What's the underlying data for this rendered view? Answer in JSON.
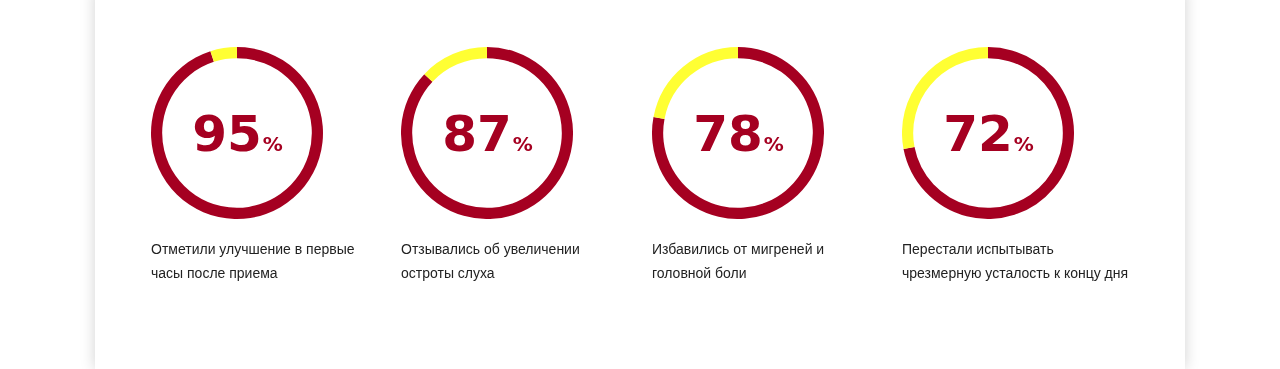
{
  "chart_data": [
    {
      "type": "donut",
      "categories": [
        null,
        null
      ],
      "values": [
        95,
        5
      ],
      "colors": [
        "#a50021",
        "#ffff33"
      ],
      "value_labels": [
        "95%",
        null
      ],
      "legend": false,
      "annotations": [
        "Отметили улучшение в первые часы после приема"
      ]
    },
    {
      "type": "donut",
      "categories": [
        null,
        null
      ],
      "values": [
        87,
        13
      ],
      "colors": [
        "#a50021",
        "#ffff33"
      ],
      "value_labels": [
        "87%",
        null
      ],
      "legend": false,
      "annotations": [
        "Отзывались об увеличении остроты слуха"
      ]
    },
    {
      "type": "donut",
      "categories": [
        null,
        null
      ],
      "values": [
        78,
        22
      ],
      "colors": [
        "#a50021",
        "#ffff33"
      ],
      "value_labels": [
        "78%",
        null
      ],
      "legend": false,
      "annotations": [
        "Избавились от мигреней и головной боли"
      ]
    },
    {
      "type": "donut",
      "categories": [
        null,
        null
      ],
      "values": [
        72,
        28
      ],
      "colors": [
        "#a50021",
        "#ffff33"
      ],
      "value_labels": [
        "72%",
        null
      ],
      "legend": false,
      "annotations": [
        "Перестали испытывать чрезмерную усталость к концу дня"
      ]
    }
  ]
}
